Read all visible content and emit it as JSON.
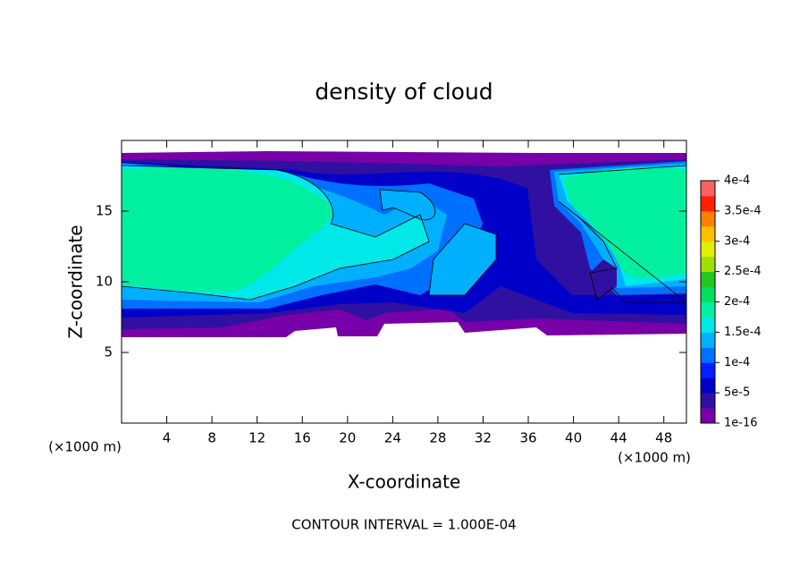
{
  "chart_data": {
    "type": "contour",
    "title": "density of cloud",
    "x_label": "X-coordinate",
    "y_label": "Z-coordinate",
    "x_unit": "(×1000 m)",
    "annotation": "CONTOUR INTERVAL = 1.000E-04",
    "xlim": [
      0,
      50
    ],
    "xticks": [
      4,
      8,
      12,
      16,
      20,
      24,
      28,
      32,
      36,
      40,
      44,
      48
    ],
    "ylim": [
      0,
      20
    ],
    "yticks": [
      5,
      10,
      15
    ],
    "colorbar_ticks": [
      {
        "value": 1e-16,
        "label": "1e-16"
      },
      {
        "value": 5e-05,
        "label": "5e-5"
      },
      {
        "value": 0.0001,
        "label": "1e-4"
      },
      {
        "value": 0.00015,
        "label": "1.5e-4"
      },
      {
        "value": 0.0002,
        "label": "2e-4"
      },
      {
        "value": 0.00025,
        "label": "2.5e-4"
      },
      {
        "value": 0.0003,
        "label": "3e-4"
      },
      {
        "value": 0.00035,
        "label": "3.5e-4"
      },
      {
        "value": 0.0004,
        "label": "4e-4"
      }
    ],
    "colors": [
      "#7800a8",
      "#3010a0",
      "#0000c8",
      "#0020ff",
      "#0070ff",
      "#00b0ff",
      "#00e8e8",
      "#00f0a0",
      "#00e060",
      "#20c820",
      "#a0e000",
      "#e0f000",
      "#ffc000",
      "#ff8000",
      "#ff2000",
      "#ff6060"
    ]
  }
}
